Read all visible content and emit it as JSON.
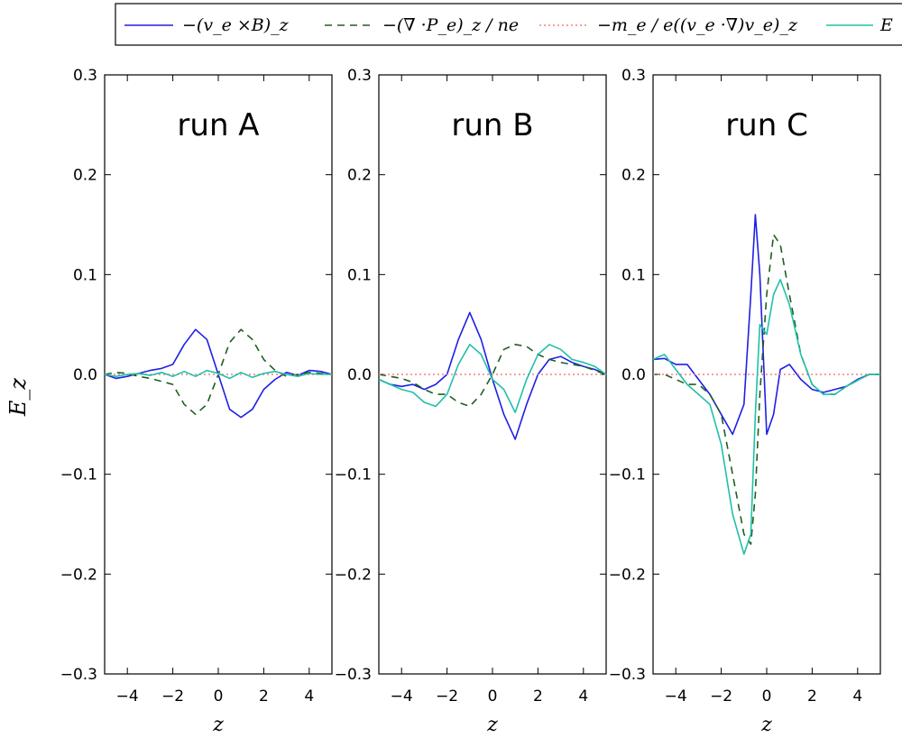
{
  "legend": {
    "placement": "top-outside",
    "entries": [
      {
        "label": "−(v_e ×B)_z",
        "style": "solid",
        "color": "#1f1fe6"
      },
      {
        "label": "−(∇ ·P_e)_z / ne",
        "style": "dashed",
        "color": "#1f5e1f"
      },
      {
        "label": "−m_e / e((v_e ·∇)v_e)_z",
        "style": "dotted",
        "color": "#f08080"
      },
      {
        "label": "E",
        "style": "solid",
        "color": "#20c0a8"
      }
    ]
  },
  "ylabel": "E_z",
  "xlabel": "z",
  "chart_data": [
    {
      "type": "line",
      "title": "run A",
      "xlim": [
        -5,
        5
      ],
      "ylim": [
        -0.3,
        0.3
      ],
      "xticks": [
        -4,
        -2,
        0,
        2,
        4
      ],
      "yticks": [
        0.3,
        0.2,
        0.1,
        0.0,
        -0.1,
        -0.2,
        -0.3
      ],
      "series": [
        {
          "key": "vxB",
          "x": [
            -5,
            -4.5,
            -4,
            -3.5,
            -3,
            -2.5,
            -2,
            -1.5,
            -1,
            -0.5,
            0,
            0.5,
            1,
            1.5,
            2,
            2.5,
            3,
            3.5,
            4,
            4.5,
            5
          ],
          "y": [
            0.0,
            -0.004,
            -0.002,
            0.001,
            0.004,
            0.006,
            0.01,
            0.03,
            0.045,
            0.035,
            0.0,
            -0.035,
            -0.043,
            -0.035,
            -0.015,
            -0.005,
            0.002,
            -0.001,
            0.004,
            0.003,
            0.0
          ]
        },
        {
          "key": "divP",
          "x": [
            -5,
            -4.5,
            -4,
            -3.5,
            -3,
            -2.5,
            -2,
            -1.5,
            -1,
            -0.5,
            0,
            0.5,
            1,
            1.5,
            2,
            2.5,
            3,
            3.5,
            4,
            4.5,
            5
          ],
          "y": [
            0.0,
            0.002,
            0.001,
            -0.002,
            -0.004,
            -0.007,
            -0.01,
            -0.03,
            -0.04,
            -0.03,
            0.0,
            0.032,
            0.045,
            0.035,
            0.015,
            0.004,
            -0.002,
            0.0,
            0.002,
            0.001,
            0.0
          ]
        },
        {
          "key": "inertia",
          "x": [
            -5,
            5
          ],
          "y": [
            0.0,
            0.0
          ]
        },
        {
          "key": "E",
          "x": [
            -5,
            -4.5,
            -4,
            -3.5,
            -3,
            -2.5,
            -2,
            -1.5,
            -1,
            -0.5,
            0,
            0.5,
            1,
            1.5,
            2,
            2.5,
            3,
            3.5,
            4,
            4.5,
            5
          ],
          "y": [
            0.0,
            -0.002,
            0.0,
            0.001,
            -0.001,
            0.002,
            -0.002,
            0.003,
            -0.002,
            0.004,
            0.001,
            -0.004,
            0.002,
            -0.003,
            0.001,
            0.003,
            0.0,
            -0.002,
            0.001,
            0.0,
            0.0
          ]
        }
      ]
    },
    {
      "type": "line",
      "title": "run B",
      "xlim": [
        -5,
        5
      ],
      "ylim": [
        -0.3,
        0.3
      ],
      "xticks": [
        -4,
        -2,
        0,
        2,
        4
      ],
      "yticks": [
        0.3,
        0.2,
        0.1,
        0.0,
        -0.1,
        -0.2,
        -0.3
      ],
      "series": [
        {
          "key": "vxB",
          "x": [
            -5,
            -4.5,
            -4,
            -3.5,
            -3,
            -2.5,
            -2,
            -1.5,
            -1,
            -0.5,
            0,
            0.5,
            1,
            1.5,
            2,
            2.5,
            3,
            3.5,
            4,
            4.5,
            5
          ],
          "y": [
            -0.005,
            -0.01,
            -0.012,
            -0.01,
            -0.015,
            -0.01,
            0.0,
            0.035,
            0.062,
            0.035,
            -0.005,
            -0.04,
            -0.065,
            -0.03,
            0.0,
            0.015,
            0.018,
            0.012,
            0.008,
            0.005,
            0.0
          ]
        },
        {
          "key": "divP",
          "x": [
            -5,
            -4.5,
            -4,
            -3.5,
            -3,
            -2.5,
            -2,
            -1.5,
            -1,
            -0.5,
            0,
            0.5,
            1,
            1.5,
            2,
            2.5,
            3,
            3.5,
            4,
            4.5,
            5
          ],
          "y": [
            0.0,
            -0.002,
            -0.004,
            -0.008,
            -0.015,
            -0.02,
            -0.02,
            -0.028,
            -0.032,
            -0.02,
            0.0,
            0.025,
            0.03,
            0.028,
            0.02,
            0.015,
            0.012,
            0.01,
            0.008,
            0.004,
            0.0
          ]
        },
        {
          "key": "inertia",
          "x": [
            -5,
            5
          ],
          "y": [
            0.0,
            0.0
          ]
        },
        {
          "key": "E",
          "x": [
            -5,
            -4.5,
            -4,
            -3.5,
            -3,
            -2.5,
            -2,
            -1.5,
            -1,
            -0.5,
            0,
            0.5,
            1,
            1.5,
            2,
            2.5,
            3,
            3.5,
            4,
            4.5,
            5
          ],
          "y": [
            -0.005,
            -0.01,
            -0.015,
            -0.018,
            -0.028,
            -0.032,
            -0.02,
            0.01,
            0.03,
            0.02,
            -0.005,
            -0.015,
            -0.038,
            -0.005,
            0.02,
            0.03,
            0.025,
            0.015,
            0.012,
            0.008,
            0.0
          ]
        }
      ]
    },
    {
      "type": "line",
      "title": "run C",
      "xlim": [
        -5,
        5
      ],
      "ylim": [
        -0.3,
        0.3
      ],
      "xticks": [
        -4,
        -2,
        0,
        2,
        4
      ],
      "yticks": [
        0.3,
        0.2,
        0.1,
        0.0,
        -0.1,
        -0.2,
        -0.3
      ],
      "series": [
        {
          "key": "vxB",
          "x": [
            -5,
            -4.5,
            -4,
            -3.5,
            -3,
            -2.5,
            -2,
            -1.5,
            -1,
            -0.7,
            -0.5,
            -0.3,
            0,
            0.3,
            0.6,
            1,
            1.5,
            2,
            2.5,
            3,
            3.5,
            4,
            4.5,
            5
          ],
          "y": [
            0.015,
            0.016,
            0.01,
            0.01,
            -0.005,
            -0.02,
            -0.04,
            -0.06,
            -0.03,
            0.08,
            0.16,
            0.1,
            -0.06,
            -0.04,
            0.005,
            0.01,
            -0.005,
            -0.015,
            -0.018,
            -0.015,
            -0.012,
            -0.005,
            0.0,
            0.0
          ]
        },
        {
          "key": "divP",
          "x": [
            -5,
            -4.5,
            -4,
            -3.5,
            -3,
            -2.5,
            -2,
            -1.5,
            -1,
            -0.7,
            -0.5,
            -0.3,
            0,
            0.3,
            0.6,
            1,
            1.5,
            2,
            2.5,
            3,
            3.5,
            4,
            4.5,
            5
          ],
          "y": [
            0.0,
            0.0,
            -0.005,
            -0.01,
            -0.01,
            -0.02,
            -0.04,
            -0.1,
            -0.16,
            -0.17,
            -0.12,
            -0.02,
            0.08,
            0.14,
            0.13,
            0.08,
            0.02,
            -0.01,
            -0.02,
            -0.02,
            -0.012,
            -0.006,
            0.0,
            0.0
          ]
        },
        {
          "key": "inertia",
          "x": [
            -5,
            5
          ],
          "y": [
            0.0,
            0.0
          ]
        },
        {
          "key": "E",
          "x": [
            -5,
            -4.5,
            -4,
            -3.5,
            -3,
            -2.5,
            -2,
            -1.5,
            -1,
            -0.7,
            -0.5,
            -0.3,
            0,
            0.3,
            0.6,
            1,
            1.5,
            2,
            2.5,
            3,
            3.5,
            4,
            4.5,
            5
          ],
          "y": [
            0.015,
            0.02,
            0.005,
            -0.01,
            -0.02,
            -0.03,
            -0.07,
            -0.14,
            -0.18,
            -0.16,
            -0.04,
            0.05,
            0.04,
            0.08,
            0.095,
            0.07,
            0.02,
            -0.01,
            -0.02,
            -0.02,
            -0.012,
            -0.006,
            0.0,
            0.0
          ]
        }
      ]
    }
  ]
}
